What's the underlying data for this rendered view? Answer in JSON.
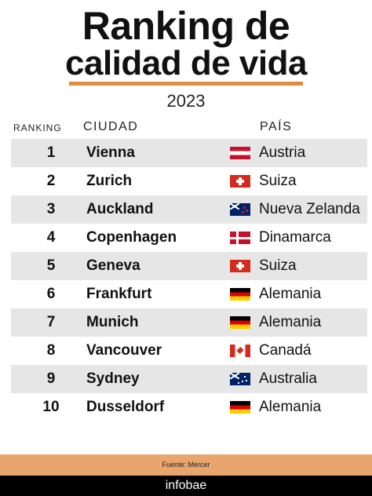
{
  "title": {
    "line1": "Ranking de",
    "line2": "calidad de vida",
    "year": "2023",
    "accent_color": "#e38b3f"
  },
  "table": {
    "headers": {
      "rank": "RANKING",
      "city": "CIUDAD",
      "country": "PAÍS"
    },
    "rows": [
      {
        "rank": "1",
        "city": "Vienna",
        "country": "Austria",
        "flag": "austria-flag-icon"
      },
      {
        "rank": "2",
        "city": "Zurich",
        "country": "Suiza",
        "flag": "switzerland-flag-icon"
      },
      {
        "rank": "3",
        "city": "Auckland",
        "country": "Nueva Zelanda",
        "flag": "new-zealand-flag-icon"
      },
      {
        "rank": "4",
        "city": "Copenhagen",
        "country": "Dinamarca",
        "flag": "denmark-flag-icon"
      },
      {
        "rank": "5",
        "city": "Geneva",
        "country": "Suiza",
        "flag": "switzerland-flag-icon"
      },
      {
        "rank": "6",
        "city": "Frankfurt",
        "country": "Alemania",
        "flag": "germany-flag-icon"
      },
      {
        "rank": "7",
        "city": "Munich",
        "country": "Alemania",
        "flag": "germany-flag-icon"
      },
      {
        "rank": "8",
        "city": "Vancouver",
        "country": "Canadá",
        "flag": "canada-flag-icon"
      },
      {
        "rank": "9",
        "city": "Sydney",
        "country": "Australia",
        "flag": "australia-flag-icon"
      },
      {
        "rank": "10",
        "city": "Dusseldorf",
        "country": "Alemania",
        "flag": "germany-flag-icon"
      }
    ]
  },
  "footer": {
    "source": "Fuente: Mercer",
    "brand": "infobae",
    "source_bar_color": "#e8a56e"
  }
}
